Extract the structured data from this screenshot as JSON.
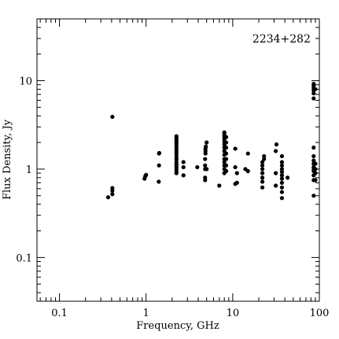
{
  "chart_data": {
    "type": "scatter",
    "title": "2234+282",
    "xlabel": "Frequency, GHz",
    "ylabel": "Flux Density, Jy",
    "xscale": "log",
    "yscale": "log",
    "xlim": [
      0.055,
      100
    ],
    "ylim": [
      0.032,
      50
    ],
    "x_ticks": [
      0.1,
      1,
      10,
      100
    ],
    "x_tick_labels": [
      "0.1",
      "1",
      "10",
      "100"
    ],
    "y_ticks": [
      0.1,
      1,
      10
    ],
    "y_tick_labels": [
      "0.1",
      "1",
      "10"
    ],
    "grid": false,
    "points": [
      [
        0.365,
        0.48
      ],
      [
        0.408,
        0.52
      ],
      [
        0.408,
        0.57
      ],
      [
        0.408,
        0.61
      ],
      [
        0.408,
        3.9
      ],
      [
        0.96,
        0.78
      ],
      [
        0.98,
        0.83
      ],
      [
        1.0,
        0.86
      ],
      [
        1.4,
        0.72
      ],
      [
        1.41,
        1.1
      ],
      [
        1.41,
        1.5
      ],
      [
        1.42,
        1.52
      ],
      [
        2.24,
        0.9
      ],
      [
        2.24,
        0.95
      ],
      [
        2.24,
        1.0
      ],
      [
        2.24,
        1.05
      ],
      [
        2.24,
        1.1
      ],
      [
        2.24,
        1.15
      ],
      [
        2.24,
        1.2
      ],
      [
        2.24,
        1.28
      ],
      [
        2.24,
        1.35
      ],
      [
        2.24,
        1.45
      ],
      [
        2.24,
        1.55
      ],
      [
        2.24,
        1.65
      ],
      [
        2.24,
        1.75
      ],
      [
        2.24,
        1.85
      ],
      [
        2.24,
        1.95
      ],
      [
        2.24,
        2.05
      ],
      [
        2.24,
        2.15
      ],
      [
        2.24,
        2.25
      ],
      [
        2.24,
        2.35
      ],
      [
        2.7,
        0.85
      ],
      [
        2.7,
        1.05
      ],
      [
        2.7,
        1.2
      ],
      [
        3.9,
        1.05
      ],
      [
        4.8,
        0.75
      ],
      [
        4.8,
        0.8
      ],
      [
        4.8,
        1.0
      ],
      [
        4.8,
        1.1
      ],
      [
        4.8,
        1.3
      ],
      [
        4.85,
        1.5
      ],
      [
        4.85,
        1.6
      ],
      [
        4.85,
        1.7
      ],
      [
        4.9,
        1.8
      ],
      [
        5.0,
        2.0
      ],
      [
        5.0,
        1.0
      ],
      [
        7.0,
        0.65
      ],
      [
        8.0,
        0.9
      ],
      [
        8.0,
        1.0
      ],
      [
        8.0,
        1.1
      ],
      [
        8.0,
        1.2
      ],
      [
        8.0,
        1.3
      ],
      [
        8.0,
        1.45
      ],
      [
        8.0,
        1.6
      ],
      [
        8.0,
        1.75
      ],
      [
        8.0,
        1.9
      ],
      [
        8.0,
        2.05
      ],
      [
        8.0,
        2.2
      ],
      [
        8.0,
        2.35
      ],
      [
        8.0,
        2.5
      ],
      [
        8.0,
        2.6
      ],
      [
        8.4,
        0.95
      ],
      [
        8.4,
        1.1
      ],
      [
        8.4,
        1.3
      ],
      [
        8.4,
        1.5
      ],
      [
        8.4,
        1.75
      ],
      [
        8.4,
        2.0
      ],
      [
        8.4,
        2.3
      ],
      [
        10.7,
        0.68
      ],
      [
        10.7,
        1.05
      ],
      [
        10.7,
        1.7
      ],
      [
        11.2,
        0.7
      ],
      [
        11.2,
        0.9
      ],
      [
        14.0,
        1.0
      ],
      [
        15.0,
        0.95
      ],
      [
        15.0,
        1.5
      ],
      [
        22.0,
        0.62
      ],
      [
        22.0,
        0.72
      ],
      [
        22.0,
        0.8
      ],
      [
        22.0,
        0.9
      ],
      [
        22.0,
        1.0
      ],
      [
        22.0,
        1.1
      ],
      [
        22.0,
        1.2
      ],
      [
        23.0,
        1.3
      ],
      [
        23.0,
        1.4
      ],
      [
        31.4,
        0.65
      ],
      [
        31.4,
        0.9
      ],
      [
        31.4,
        1.6
      ],
      [
        32.0,
        1.9
      ],
      [
        37.0,
        0.47
      ],
      [
        37.0,
        0.55
      ],
      [
        37.0,
        0.62
      ],
      [
        37.0,
        0.7
      ],
      [
        37.0,
        0.78
      ],
      [
        37.0,
        0.85
      ],
      [
        37.0,
        0.93
      ],
      [
        37.0,
        1.0
      ],
      [
        37.0,
        1.1
      ],
      [
        37.0,
        1.2
      ],
      [
        37.0,
        1.4
      ],
      [
        43.0,
        0.8
      ],
      [
        86.0,
        0.5
      ],
      [
        86.0,
        0.75
      ],
      [
        86.0,
        0.85
      ],
      [
        86.0,
        0.95
      ],
      [
        86.0,
        1.05
      ],
      [
        86.0,
        1.15
      ],
      [
        86.0,
        1.25
      ],
      [
        86.0,
        1.4
      ],
      [
        86.0,
        1.75
      ],
      [
        86.0,
        6.3
      ],
      [
        86.0,
        7.2
      ],
      [
        86.0,
        7.8
      ],
      [
        86.0,
        8.3
      ],
      [
        86.0,
        8.8
      ],
      [
        86.0,
        9.2
      ],
      [
        90.0,
        0.75
      ],
      [
        90.0,
        0.9
      ],
      [
        90.0,
        1.0
      ],
      [
        90.0,
        1.15
      ],
      [
        90.0,
        8.0
      ]
    ]
  }
}
